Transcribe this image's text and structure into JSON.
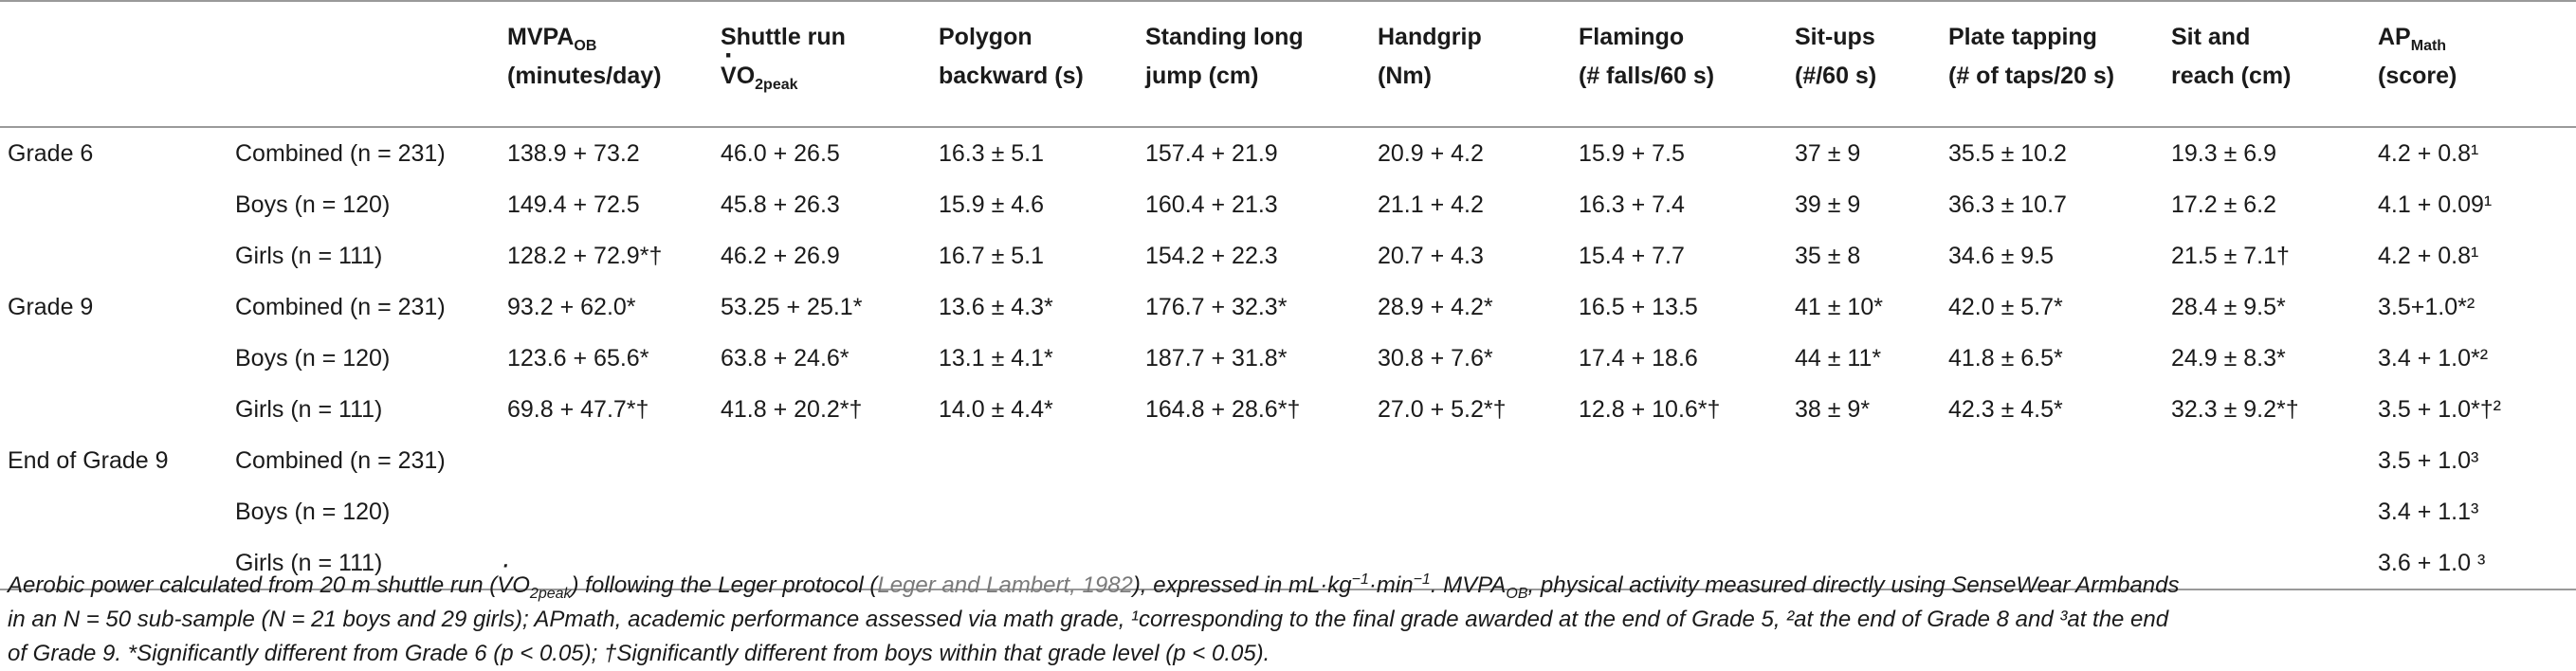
{
  "table": {
    "header": [
      "",
      "",
      "MVPAOB (minutes/day)",
      "Shuttle run VO2peak",
      "Polygon backward (s)",
      "Standing long jump (cm)",
      "Handgrip (Nm)",
      "Flamingo (# falls/60 s)",
      "Sit-ups (#/60 s)",
      "Plate tapping (# of taps/20 s)",
      "Sit and reach (cm)",
      "APMath (score)"
    ],
    "rows": [
      {
        "grade": "Grade 6",
        "group": "Combined (n = 231)",
        "cells": [
          "138.9 + 73.2",
          "46.0 + 26.5",
          "16.3 ± 5.1",
          "157.4 + 21.9",
          "20.9 + 4.2",
          "15.9 + 7.5",
          "37 ± 9",
          "35.5 ± 10.2",
          "19.3 ± 6.9",
          "4.2 + 0.8¹"
        ]
      },
      {
        "grade": "",
        "group": "Boys (n = 120)",
        "cells": [
          "149.4 + 72.5",
          "45.8 + 26.3",
          "15.9 ± 4.6",
          "160.4 + 21.3",
          "21.1 + 4.2",
          "16.3 + 7.4",
          "39 ± 9",
          "36.3 ± 10.7",
          "17.2 ± 6.2",
          "4.1 + 0.09¹"
        ]
      },
      {
        "grade": "",
        "group": "Girls (n = 111)",
        "cells": [
          "128.2 + 72.9*†",
          "46.2 + 26.9",
          "16.7 ± 5.1",
          "154.2 + 22.3",
          "20.7 + 4.3",
          "15.4 + 7.7",
          "35 ± 8",
          "34.6 ± 9.5",
          "21.5 ± 7.1†",
          "4.2 + 0.8¹"
        ]
      },
      {
        "grade": "Grade 9",
        "group": "Combined (n = 231)",
        "cells": [
          "93.2 + 62.0*",
          "53.25 + 25.1*",
          "13.6 ± 4.3*",
          "176.7 + 32.3*",
          "28.9 + 4.2*",
          "16.5 + 13.5",
          "41 ± 10*",
          "42.0 ± 5.7*",
          "28.4 ± 9.5*",
          "3.5+1.0*²"
        ]
      },
      {
        "grade": "",
        "group": "Boys (n = 120)",
        "cells": [
          "123.6 + 65.6*",
          "63.8 + 24.6*",
          "13.1 ± 4.1*",
          "187.7 + 31.8*",
          "30.8 + 7.6*",
          "17.4 + 18.6",
          "44 ± 11*",
          "41.8 ± 6.5*",
          "24.9 ± 8.3*",
          "3.4 + 1.0*²"
        ]
      },
      {
        "grade": "",
        "group": "Girls (n = 111)",
        "cells": [
          "69.8 + 47.7*†",
          "41.8 + 20.2*†",
          "14.0 ± 4.4*",
          "164.8 + 28.6*†",
          "27.0 + 5.2*†",
          "12.8 + 10.6*†",
          "38 ± 9*",
          "42.3 ± 4.5*",
          "32.3 ± 9.2*†",
          "3.5 + 1.0*†²"
        ]
      },
      {
        "grade": "End of Grade 9",
        "group": "Combined (n = 231)",
        "cells": [
          "",
          "",
          "",
          "",
          "",
          "",
          "",
          "",
          "",
          "3.5 + 1.0³"
        ]
      },
      {
        "grade": "",
        "group": "Boys (n = 120)",
        "cells": [
          "",
          "",
          "",
          "",
          "",
          "",
          "",
          "",
          "",
          "3.4 + 1.1³"
        ]
      },
      {
        "grade": "",
        "group": "Girls (n = 111)",
        "cells": [
          "",
          "",
          "",
          "",
          "",
          "",
          "",
          "",
          "",
          "3.6 + 1.0 ³"
        ]
      }
    ]
  },
  "footnote": {
    "line1a": "Aerobic power calculated from 20 m shuttle run (VO2peak) following the Leger protocol (",
    "line1ref": "Leger and Lambert, 1982",
    "line1b": "), expressed in mL·kg−1·min−1. MVPAOB, physical activity measured directly using SenseWear Armbands",
    "line2": "in an N = 50 sub-sample (N = 21 boys and 29 girls); APmath, academic performance assessed via math grade, ¹corresponding to the final grade awarded at the end of Grade 5, ²at the end of Grade 8 and ³at the end",
    "line3": "of Grade 9. *Significantly different from Grade 6 (p < 0.05); †Significantly different from boys within that grade level (p < 0.05)."
  }
}
